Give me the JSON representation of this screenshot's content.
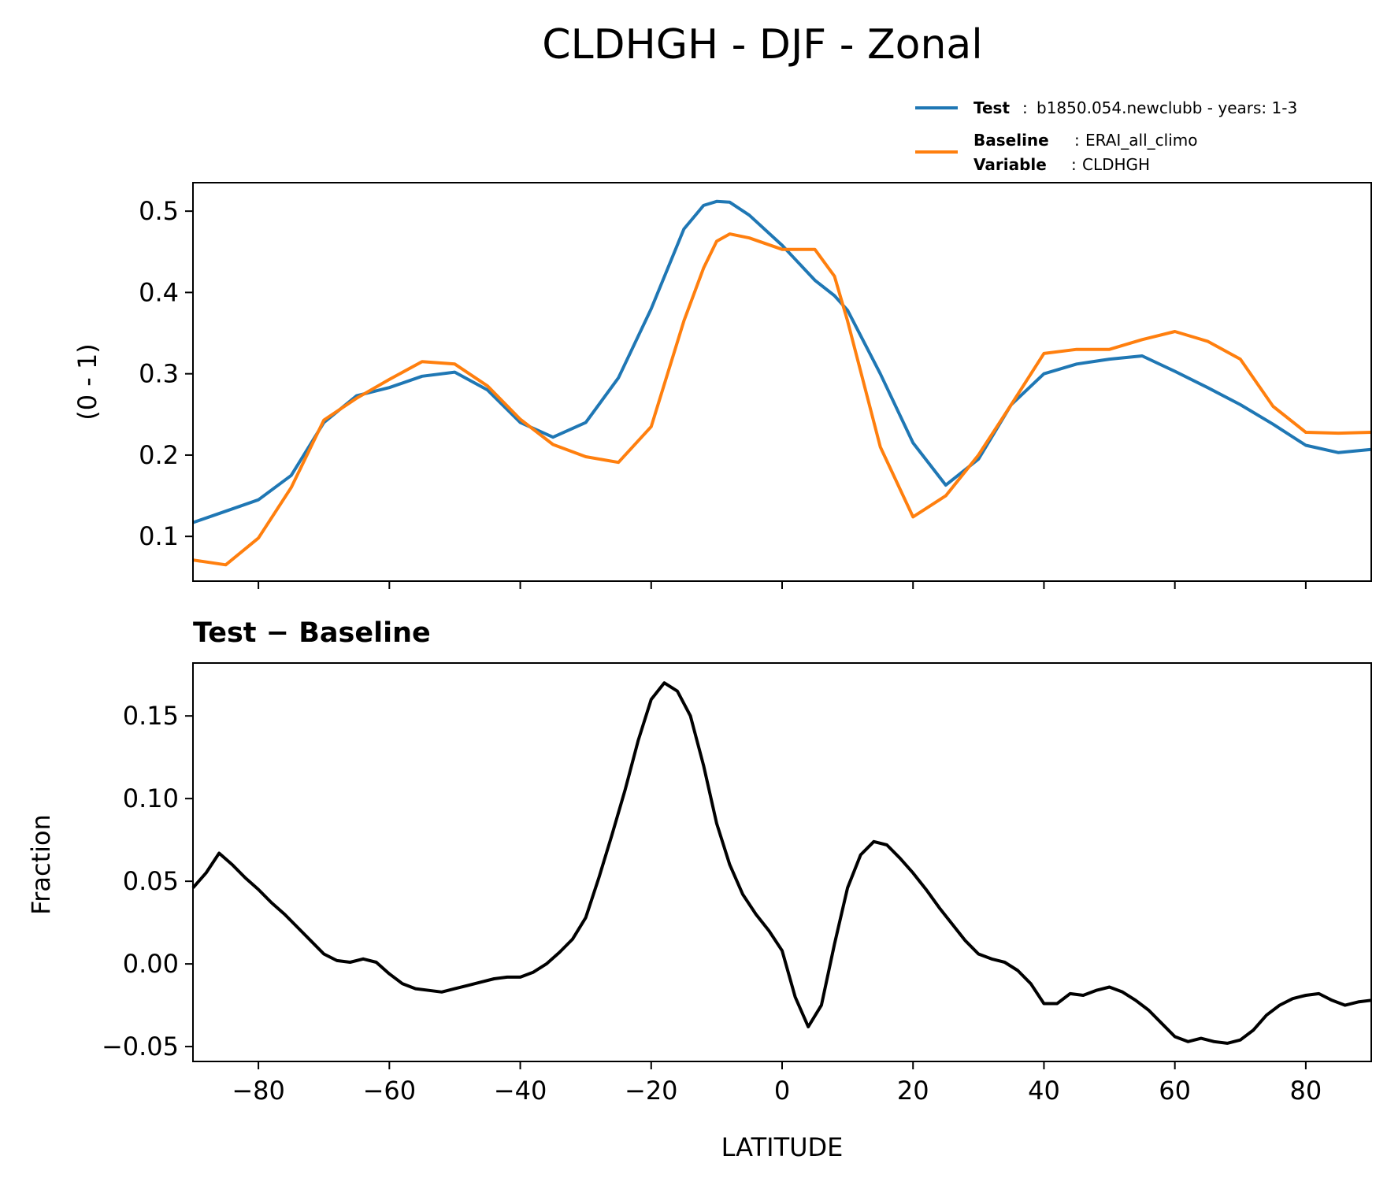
{
  "title": "CLDHGH - DJF - Zonal",
  "legend": {
    "test_key": "Test",
    "test_sep": ":",
    "test_value": "b1850.054.newclubb - years: 1-3",
    "baseline_key": "Baseline",
    "baseline_sep": ":",
    "baseline_value": "ERAI_all_climo",
    "variable_key": "Variable",
    "variable_sep": ":",
    "variable_value": "CLDHGH"
  },
  "colors": {
    "test": "#1f77b4",
    "baseline": "#ff7f0e",
    "difference": "#000000"
  },
  "chart_data": [
    {
      "type": "line",
      "ylabel": "(0 - 1)",
      "xlim": [
        -90,
        90
      ],
      "ylim": [
        0.045,
        0.535
      ],
      "xticks": [
        -80,
        -60,
        -40,
        -20,
        0,
        20,
        40,
        60,
        80
      ],
      "yticks": [
        0.1,
        0.2,
        0.3,
        0.4,
        0.5
      ],
      "ytick_labels": [
        "0.1",
        "0.2",
        "0.3",
        "0.4",
        "0.5"
      ],
      "x": [
        -90,
        -85,
        -80,
        -75,
        -70,
        -65,
        -60,
        -55,
        -50,
        -45,
        -40,
        -35,
        -30,
        -25,
        -20,
        -15,
        -12,
        -10,
        -8,
        -5,
        0,
        5,
        8,
        10,
        15,
        20,
        25,
        30,
        35,
        40,
        45,
        50,
        55,
        60,
        65,
        70,
        75,
        80,
        85,
        90
      ],
      "series": [
        {
          "name": "Test",
          "values": [
            0.117,
            0.131,
            0.145,
            0.175,
            0.24,
            0.273,
            0.283,
            0.297,
            0.302,
            0.28,
            0.24,
            0.222,
            0.24,
            0.295,
            0.38,
            0.478,
            0.507,
            0.512,
            0.511,
            0.495,
            0.458,
            0.415,
            0.396,
            0.378,
            0.3,
            0.215,
            0.163,
            0.195,
            0.262,
            0.3,
            0.312,
            0.318,
            0.322,
            0.303,
            0.283,
            0.262,
            0.238,
            0.212,
            0.203,
            0.207
          ]
        },
        {
          "name": "Baseline",
          "values": [
            0.071,
            0.065,
            0.098,
            0.16,
            0.243,
            0.27,
            0.293,
            0.315,
            0.312,
            0.285,
            0.244,
            0.213,
            0.198,
            0.191,
            0.235,
            0.365,
            0.43,
            0.463,
            0.472,
            0.467,
            0.453,
            0.453,
            0.42,
            0.365,
            0.21,
            0.124,
            0.15,
            0.2,
            0.262,
            0.325,
            0.33,
            0.33,
            0.342,
            0.352,
            0.34,
            0.318,
            0.26,
            0.228,
            0.227,
            0.228
          ]
        }
      ]
    },
    {
      "type": "line",
      "title": "Test − Baseline",
      "xlabel": "LATITUDE",
      "ylabel": "Fraction",
      "xlim": [
        -90,
        90
      ],
      "ylim": [
        -0.059,
        0.182
      ],
      "xticks": [
        -80,
        -60,
        -40,
        -20,
        0,
        20,
        40,
        60,
        80
      ],
      "xtick_labels": [
        "−80",
        "−60",
        "−40",
        "−20",
        "0",
        "20",
        "40",
        "60",
        "80"
      ],
      "yticks": [
        -0.05,
        0.0,
        0.05,
        0.1,
        0.15
      ],
      "ytick_labels": [
        "−0.05",
        "0.00",
        "0.05",
        "0.10",
        "0.15"
      ],
      "x": [
        -90,
        -88,
        -86,
        -84,
        -82,
        -80,
        -78,
        -76,
        -74,
        -72,
        -70,
        -68,
        -66,
        -64,
        -62,
        -60,
        -58,
        -56,
        -54,
        -52,
        -50,
        -48,
        -46,
        -44,
        -42,
        -40,
        -38,
        -36,
        -34,
        -32,
        -30,
        -28,
        -26,
        -24,
        -22,
        -20,
        -18,
        -16,
        -14,
        -12,
        -10,
        -8,
        -6,
        -4,
        -2,
        0,
        2,
        4,
        6,
        8,
        10,
        12,
        14,
        16,
        18,
        20,
        22,
        24,
        26,
        28,
        30,
        32,
        34,
        36,
        38,
        40,
        42,
        44,
        46,
        48,
        50,
        52,
        54,
        56,
        58,
        60,
        62,
        64,
        66,
        68,
        70,
        72,
        74,
        76,
        78,
        80,
        82,
        84,
        86,
        88,
        90
      ],
      "series": [
        {
          "name": "Test − Baseline",
          "values": [
            0.046,
            0.055,
            0.067,
            0.06,
            0.052,
            0.045,
            0.037,
            0.03,
            0.022,
            0.014,
            0.006,
            0.002,
            0.001,
            0.003,
            0.001,
            -0.006,
            -0.012,
            -0.015,
            -0.016,
            -0.017,
            -0.015,
            -0.013,
            -0.011,
            -0.009,
            -0.008,
            -0.008,
            -0.005,
            0.0,
            0.007,
            0.015,
            0.028,
            0.052,
            0.078,
            0.105,
            0.135,
            0.16,
            0.17,
            0.165,
            0.15,
            0.12,
            0.085,
            0.06,
            0.042,
            0.03,
            0.02,
            0.008,
            -0.02,
            -0.038,
            -0.025,
            0.012,
            0.046,
            0.066,
            0.074,
            0.072,
            0.064,
            0.055,
            0.045,
            0.034,
            0.024,
            0.014,
            0.006,
            0.003,
            0.001,
            -0.004,
            -0.012,
            -0.024,
            -0.024,
            -0.018,
            -0.019,
            -0.016,
            -0.014,
            -0.017,
            -0.022,
            -0.028,
            -0.036,
            -0.044,
            -0.047,
            -0.045,
            -0.047,
            -0.048,
            -0.046,
            -0.04,
            -0.031,
            -0.025,
            -0.021,
            -0.019,
            -0.018,
            -0.022,
            -0.025,
            -0.023,
            -0.022
          ]
        }
      ]
    }
  ]
}
